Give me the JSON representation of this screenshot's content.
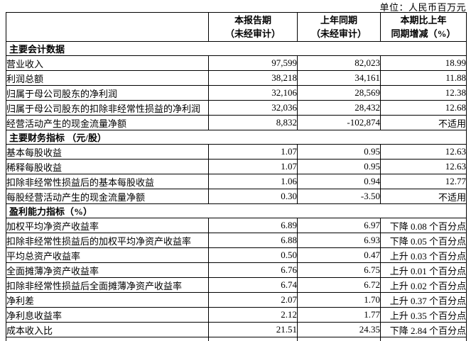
{
  "unit_note": "单位：人民币百万元",
  "table": {
    "header": {
      "label_col": "",
      "current": {
        "line1": "本报告期",
        "line2": "（未经审计）"
      },
      "prior": {
        "line1": "上年同期",
        "line2": "（未经审计）"
      },
      "change": {
        "line1": "本期比上年",
        "line2": "同期增减（%）"
      }
    },
    "sections": [
      {
        "title": "主要会计数据",
        "rows": [
          {
            "label": "营业收入",
            "current": "97,599",
            "prior": "82,023",
            "change": "18.99"
          },
          {
            "label": "利润总额",
            "current": "38,218",
            "prior": "34,161",
            "change": "11.88"
          },
          {
            "label": "归属于母公司股东的净利润",
            "current": "32,106",
            "prior": "28,569",
            "change": "12.38"
          },
          {
            "label": "归属于母公司股东的扣除非经常性损益的净利润",
            "current": "32,036",
            "prior": "28,432",
            "change": "12.68"
          },
          {
            "label": "经营活动产生的现金流量净额",
            "current": "8,832",
            "prior": "-102,874",
            "change": "不适用"
          }
        ]
      },
      {
        "title": "主要财务指标 （元/股）",
        "rows": [
          {
            "label": "基本每股收益",
            "current": "1.07",
            "prior": "0.95",
            "change": "12.63"
          },
          {
            "label": "稀释每股收益",
            "current": "1.07",
            "prior": "0.95",
            "change": "12.63"
          },
          {
            "label": "扣除非经常性损益后的基本每股收益",
            "current": "1.06",
            "prior": "0.94",
            "change": "12.77"
          },
          {
            "label": "每股经营活动产生的现金流量净额",
            "current": "0.30",
            "prior": "-3.50",
            "change": "不适用"
          }
        ]
      },
      {
        "title": "盈利能力指标（%）",
        "rows": [
          {
            "label": "加权平均净资产收益率",
            "current": "6.89",
            "prior": "6.97",
            "change": "下降 0.08 个百分点"
          },
          {
            "label": "扣除非经常性损益后的加权平均净资产收益率",
            "current": "6.88",
            "prior": "6.93",
            "change": "下降 0.05 个百分点"
          },
          {
            "label": "平均总资产收益率",
            "current": "0.50",
            "prior": "0.47",
            "change": "上升 0.03 个百分点"
          },
          {
            "label": "全面摊薄净资产收益率",
            "current": "6.76",
            "prior": "6.75",
            "change": "上升 0.01 个百分点"
          },
          {
            "label": "扣除非经常性损益后全面摊薄净资产收益率",
            "current": "6.74",
            "prior": "6.72",
            "change": "上升 0.02 个百分点"
          },
          {
            "label": "净利差",
            "current": "2.07",
            "prior": "1.70",
            "change": "上升 0.37 个百分点"
          },
          {
            "label": "净利息收益率",
            "current": "2.12",
            "prior": "1.77",
            "change": "上升 0.35 个百分点"
          },
          {
            "label": "成本收入比",
            "current": "21.51",
            "prior": "24.35",
            "change": "下降 2.84 个百分点"
          }
        ]
      }
    ]
  }
}
